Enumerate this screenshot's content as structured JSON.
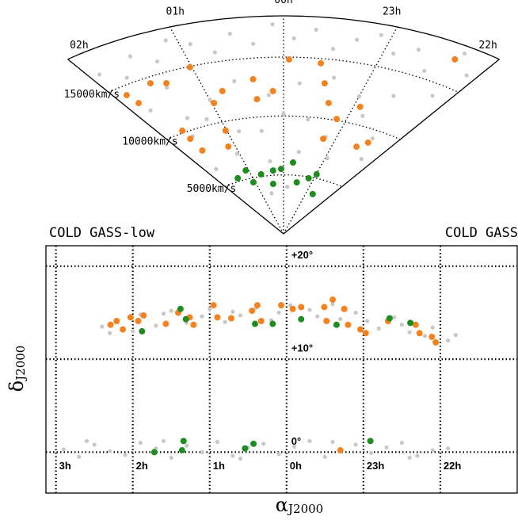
{
  "chart_data": [
    {
      "type": "wedge",
      "xlim": [
        2,
        22
      ],
      "ylim": [
        0,
        18500
      ],
      "xticks": [
        {
          "value": 2,
          "label": "02h"
        },
        {
          "value": 1,
          "label": "01h"
        },
        {
          "value": 0,
          "label": "00h"
        },
        {
          "value": 23,
          "label": "23h"
        },
        {
          "value": 22,
          "label": "22h"
        }
      ],
      "yticks": [
        {
          "value": 5000,
          "label": "5000km/s"
        },
        {
          "value": 10000,
          "label": "10000km/s"
        },
        {
          "value": 15000,
          "label": "15000km/s"
        }
      ],
      "series": [
        {
          "color": "#c8c8c8",
          "x": [
            1.9,
            1.7,
            1.5,
            1.3,
            1.1,
            0.9,
            0.7,
            0.5,
            0.3,
            0.1,
            23.9,
            23.7,
            23.5,
            23.3,
            23.1,
            22.9,
            22.7,
            22.5,
            22.3,
            22.1,
            1.8,
            1.4,
            1.0,
            0.6,
            0.2,
            23.8,
            23.4,
            23.0,
            22.6,
            22.2,
            1.6,
            1.2,
            0.8,
            0.4,
            0.0,
            23.6,
            23.2,
            22.8,
            22.4,
            1.75,
            1.05,
            0.35,
            23.65,
            22.95,
            22.25,
            0.55,
            23.85,
            1.45
          ],
          "values": [
            16500,
            15500,
            17000,
            16000,
            17500,
            16800,
            15800,
            17200,
            16200,
            17800,
            16600,
            17400,
            15900,
            16900,
            17600,
            16300,
            17100,
            15600,
            17900,
            16400,
            12500,
            13800,
            12000,
            13200,
            11800,
            12800,
            13500,
            12300,
            13000,
            14000,
            9500,
            10500,
            9000,
            8800,
            10200,
            9800,
            8500,
            10800,
            9300,
            6500,
            7200,
            6200,
            7000,
            6800,
            7500,
            3500,
            4000,
            11000
          ]
        },
        {
          "color": "#f5821f",
          "x": [
            1.87,
            1.84,
            1.53,
            1.37,
            1.02,
            1.66,
            0.97,
            0.79,
            1.02,
            0.37,
            0.14,
            0.37,
            23.94,
            23.59,
            23.49,
            23.36,
            23.15,
            23.23,
            22.91,
            22.54,
            22.41,
            22.33,
            1.67,
            1.67,
            1.14
          ],
          "values": [
            14260,
            13360,
            14490,
            14130,
            14930,
            8210,
            11660,
            12520,
            9250,
            11510,
            12130,
            13210,
            14800,
            14600,
            12950,
            11340,
            10120,
            8320,
            11470,
            8290,
            8880,
            17220,
            9380,
            10180,
            7930
          ]
        },
        {
          "color": "#1e8c1e",
          "x": [
            1.08,
            1.44,
            1.06,
            0.7,
            0.31,
            0.07,
            0.39,
            23.75,
            23.52,
            23.17,
            22.99,
            22.7
          ],
          "values": [
            5720,
            5270,
            4640,
            5180,
            5400,
            5510,
            4270,
            6070,
            4420,
            4890,
            5330,
            3690
          ]
        }
      ]
    },
    {
      "type": "skymap",
      "xlabel": {
        "symbol": "α",
        "subscript": "J2000"
      },
      "ylabel": {
        "symbol": "δ",
        "subscript": "J2000"
      },
      "xlim": [
        3.13,
        21
      ],
      "ylim": [
        -4.4,
        22.2
      ],
      "xticks": [
        {
          "value": 3,
          "label": "3h"
        },
        {
          "value": 2,
          "label": "2h"
        },
        {
          "value": 1,
          "label": "1h"
        },
        {
          "value": 0,
          "label": "0h"
        },
        {
          "value": 23,
          "label": "23h"
        },
        {
          "value": 22,
          "label": "22h"
        }
      ],
      "yticks": [
        {
          "value": 20,
          "label": "+20°"
        },
        {
          "value": 10,
          "label": "+10°"
        },
        {
          "value": 0,
          "label": "0°"
        }
      ],
      "series": [
        {
          "color": "#c8c8c8",
          "x": [
            2.4,
            2.3,
            2.2,
            2.0,
            1.9,
            1.7,
            1.6,
            1.5,
            1.3,
            1.1,
            1.0,
            0.8,
            0.7,
            0.6,
            0.4,
            0.2,
            0.1,
            23.95,
            23.8,
            23.7,
            23.6,
            23.4,
            23.3,
            23.1,
            22.95,
            22.8,
            22.6,
            22.5,
            22.4,
            22.2,
            22.1,
            21.9,
            21.8,
            2.9,
            2.7,
            2.5,
            2.3,
            2.1,
            1.9,
            1.7,
            1.5,
            1.3,
            1.1,
            0.9,
            0.7,
            0.5,
            0.3,
            0.1,
            23.9,
            23.7,
            23.5,
            23.3,
            23.1,
            22.9,
            22.7,
            22.5,
            22.3,
            22.1,
            21.9,
            2.6,
            1.6,
            0.6,
            23.4,
            22.4
          ],
          "values": [
            13.5,
            12.8,
            14.2,
            13.0,
            14.8,
            13.6,
            14.9,
            15.2,
            13.9,
            14.6,
            15.4,
            14.0,
            15.1,
            14.7,
            15.5,
            14.2,
            15.0,
            15.8,
            14.4,
            15.3,
            14.6,
            15.9,
            14.3,
            15.0,
            14.1,
            13.3,
            14.5,
            13.7,
            12.9,
            12.5,
            13.4,
            12.0,
            12.6,
            0.3,
            -0.5,
            0.8,
            0.1,
            -0.3,
            1.0,
            0.4,
            -0.6,
            0.7,
            0.0,
            1.1,
            -0.4,
            0.5,
            0.9,
            -0.2,
            0.6,
            1.2,
            -0.5,
            0.3,
            0.8,
            -0.1,
            0.5,
            1.0,
            -0.4,
            0.2,
            0.4,
            1.2,
            1.2,
            -0.7,
            1.1,
            -0.6
          ]
        },
        {
          "name": "COLD GASS",
          "color": "#f5821f",
          "x": [
            2.29,
            2.21,
            2.13,
            2.03,
            1.93,
            1.86,
            1.57,
            1.41,
            1.26,
            1.21,
            0.95,
            0.9,
            0.72,
            0.45,
            0.38,
            0.33,
            0.07,
            23.92,
            23.81,
            23.51,
            23.48,
            23.4,
            23.25,
            23.2,
            23.04,
            22.97,
            22.68,
            22.32,
            22.27,
            22.11,
            22.06,
            23.3
          ],
          "values": [
            13.7,
            14.1,
            13.2,
            14.5,
            14.1,
            14.7,
            13.8,
            15.0,
            14.5,
            13.7,
            15.8,
            14.5,
            14.4,
            15.2,
            15.8,
            14.1,
            15.8,
            15.4,
            15.6,
            15.6,
            14.1,
            16.4,
            15.4,
            13.7,
            13.2,
            12.8,
            14.1,
            13.7,
            12.8,
            12.4,
            11.8,
            0.2
          ]
        },
        {
          "name": "COLD GASS-low",
          "color": "#1e8c1e",
          "x": [
            1.88,
            1.38,
            1.31,
            0.41,
            0.18,
            23.81,
            23.35,
            22.66,
            22.39,
            1.72,
            1.34,
            1.36,
            0.54,
            0.43,
            22.91
          ],
          "values": [
            13.0,
            15.4,
            14.3,
            13.8,
            13.8,
            14.3,
            13.7,
            14.4,
            13.9,
            0,
            1.2,
            0.2,
            0.4,
            0.9,
            1.2
          ]
        }
      ]
    }
  ]
}
